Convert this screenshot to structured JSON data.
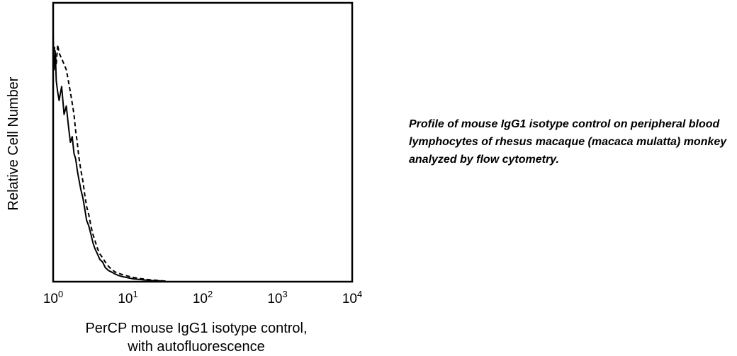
{
  "chart_data": {
    "type": "line",
    "title": "",
    "ylabel": "Relative Cell Number",
    "xlabel_lines": [
      "PerCP mouse IgG1 isotype control,",
      "with autofluorescence"
    ],
    "xscale": "log",
    "xlim": [
      1,
      10000
    ],
    "ylim": [
      0,
      100
    ],
    "xticks": [
      {
        "base": "10",
        "exp": "0",
        "value": 1
      },
      {
        "base": "10",
        "exp": "1",
        "value": 10
      },
      {
        "base": "10",
        "exp": "2",
        "value": 100
      },
      {
        "base": "10",
        "exp": "3",
        "value": 1000
      },
      {
        "base": "10",
        "exp": "4",
        "value": 10000
      }
    ],
    "grid": false,
    "legend": "none",
    "series": [
      {
        "style": "solid",
        "x": [
          1.0,
          1.03,
          1.07,
          1.1,
          1.15,
          1.2,
          1.3,
          1.4,
          1.5,
          1.6,
          1.7,
          1.8,
          1.9,
          2.0,
          2.1,
          2.2,
          2.35,
          2.5,
          2.65,
          2.8,
          3.0,
          3.2,
          3.4,
          3.6,
          3.9,
          4.2,
          4.6,
          5.0,
          5.5,
          6.0,
          6.7,
          7.5,
          8.5,
          10,
          12,
          14,
          17,
          21,
          26,
          32
        ],
        "y": [
          88,
          76,
          82,
          72,
          68,
          65,
          70,
          60,
          63,
          56,
          50,
          52,
          46,
          44,
          40,
          37,
          33,
          30,
          26,
          22,
          20,
          17,
          14,
          12,
          10,
          8,
          7,
          5,
          4,
          3.5,
          2.8,
          2.2,
          1.8,
          1.4,
          1.0,
          0.8,
          0.6,
          0.4,
          0.3,
          0.2
        ]
      },
      {
        "style": "dashed",
        "x": [
          1.0,
          1.05,
          1.1,
          1.15,
          1.2,
          1.3,
          1.4,
          1.5,
          1.6,
          1.7,
          1.8,
          1.9,
          2.0,
          2.1,
          2.2,
          2.35,
          2.5,
          2.65,
          2.8,
          3.0,
          3.2,
          3.4,
          3.6,
          3.9,
          4.2,
          4.6,
          5.0,
          5.5,
          6.0,
          6.7,
          7.5,
          8.5,
          10,
          12,
          14,
          17,
          21,
          26,
          32
        ],
        "y": [
          80,
          84,
          78,
          85,
          82,
          80,
          78,
          76,
          72,
          68,
          64,
          60,
          54,
          50,
          45,
          40,
          36,
          31,
          27,
          24,
          20,
          17,
          15,
          12,
          10,
          8.5,
          7,
          5.5,
          4.5,
          3.5,
          3.0,
          2.5,
          2.0,
          1.5,
          1.2,
          0.9,
          0.6,
          0.4,
          0.2
        ]
      }
    ]
  },
  "caption": "Profile of mouse IgG1 isotype control on peripheral blood lymphocytes of rhesus macaque (macaca mulatta) monkey analyzed by flow cytometry."
}
